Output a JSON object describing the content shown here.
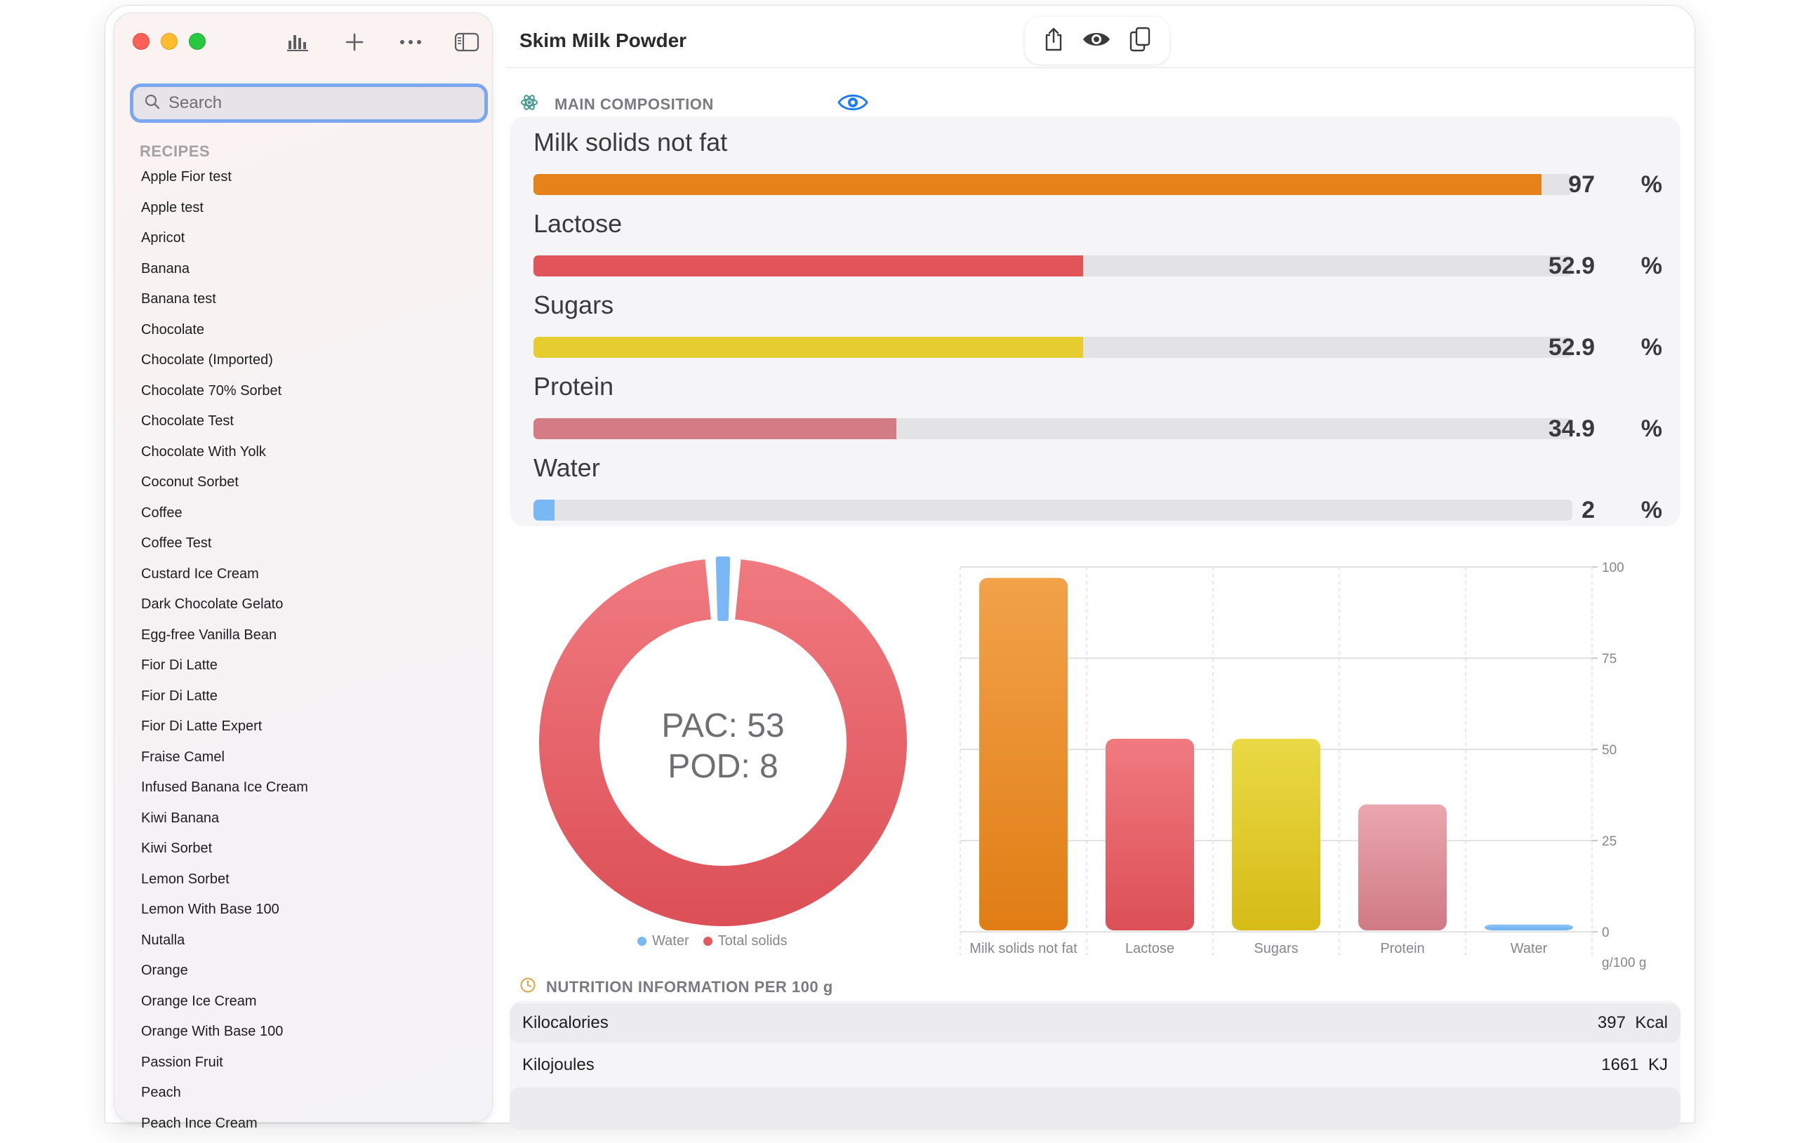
{
  "window": {
    "title": "Skim Milk Powder",
    "toolbar_icons": [
      "chart-icon",
      "plus-icon",
      "ellipsis-icon",
      "sidebar-toggle-icon"
    ],
    "actions": [
      "share-icon",
      "eye-icon",
      "copy-icon"
    ]
  },
  "sidebar": {
    "search_placeholder": "Search",
    "section": "RECIPES",
    "items": [
      "Apple Fior test",
      "Apple test",
      "Apricot",
      "Banana",
      "Banana test",
      "Chocolate",
      "Chocolate (Imported)",
      "Chocolate 70% Sorbet",
      "Chocolate Test",
      "Chocolate With Yolk",
      "Coconut Sorbet",
      "Coffee",
      "Coffee Test",
      "Custard Ice Cream",
      "Dark Chocolate Gelato",
      "Egg-free Vanilla Bean",
      "Fior Di Latte",
      "Fior Di Latte",
      "Fior Di Latte Expert",
      "Fraise Camel",
      "Infused Banana Ice Cream",
      "Kiwi Banana",
      "Kiwi Sorbet",
      "Lemon Sorbet",
      "Lemon With Base 100",
      "Nutalla",
      "Orange",
      "Orange Ice Cream",
      "Orange With Base 100",
      "Passion Fruit",
      "Peach",
      "Peach Ince Cream"
    ]
  },
  "composition": {
    "title": "MAIN COMPOSITION",
    "unit": "%",
    "metrics": [
      {
        "label": "Milk solids not fat",
        "value": "97",
        "fraction": 0.97,
        "color": "#e5831a"
      },
      {
        "label": "Lactose",
        "value": "52.9",
        "fraction": 0.529,
        "color": "#e15459"
      },
      {
        "label": "Sugars",
        "value": "52.9",
        "fraction": 0.529,
        "color": "#e5cc2f"
      },
      {
        "label": "Protein",
        "value": "34.9",
        "fraction": 0.349,
        "color": "#d47c86"
      },
      {
        "label": "Water",
        "value": "2",
        "fraction": 0.02,
        "color": "#7ab8f5"
      }
    ]
  },
  "donut": {
    "center_line1": "PAC: 53",
    "center_line2": "POD: 8",
    "legend": [
      {
        "label": "Water",
        "color": "#7ab8f5"
      },
      {
        "label": "Total solids",
        "color": "#e25a60"
      }
    ]
  },
  "chart_data": [
    {
      "type": "pie",
      "labels": [
        "Water",
        "Total solids"
      ],
      "values": [
        2,
        98
      ],
      "colors": [
        "#7ab8f5",
        "#e25a60"
      ],
      "annotations": [
        "PAC: 53",
        "POD: 8"
      ]
    },
    {
      "type": "bar",
      "categories": [
        "Milk solids not fat",
        "Lactose",
        "Sugars",
        "Protein",
        "Water"
      ],
      "values": [
        97,
        52.9,
        52.9,
        34.9,
        2
      ],
      "colors": [
        [
          "#f2a24a",
          "#e07d14"
        ],
        [
          "#f07a80",
          "#dc4f56"
        ],
        [
          "#ead945",
          "#d6bb16"
        ],
        [
          "#eaa6ae",
          "#d07a84"
        ],
        [
          "#8cc4f7",
          "#6bb0f2"
        ]
      ],
      "yticks": [
        "0",
        "25",
        "50",
        "75",
        "100"
      ],
      "ylim": [
        0,
        100
      ],
      "yunit": "g/100 g",
      "grid": true
    }
  ],
  "nutrition": {
    "title": "NUTRITION INFORMATION PER 100 g",
    "rows": [
      {
        "label": "Kilocalories",
        "value": "397",
        "unit": "Kcal"
      },
      {
        "label": "Kilojoules",
        "value": "1661",
        "unit": "KJ"
      }
    ]
  }
}
